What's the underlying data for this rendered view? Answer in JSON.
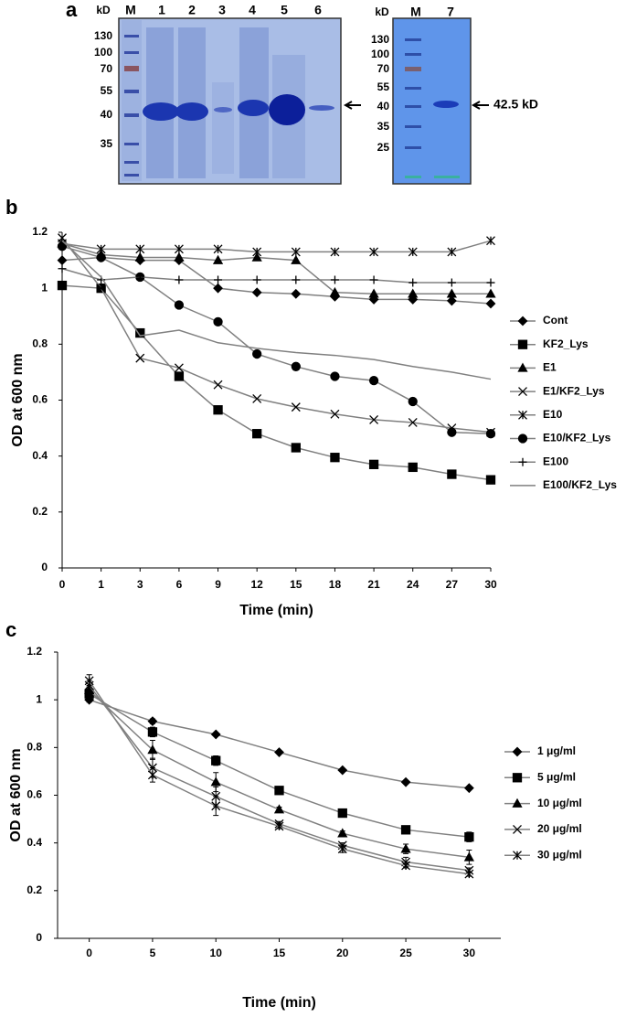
{
  "panel_a": {
    "label": "a",
    "gel_left": {
      "unit": "kD",
      "lanes": [
        "M",
        "1",
        "2",
        "3",
        "4",
        "5",
        "6"
      ],
      "markers": [
        "130",
        "100",
        "70",
        "55",
        "40",
        "35"
      ]
    },
    "gel_right": {
      "unit": "kD",
      "lanes": [
        "M",
        "7"
      ],
      "markers": [
        "130",
        "100",
        "70",
        "55",
        "40",
        "35",
        "25"
      ],
      "band_label": "42.5 kD"
    }
  },
  "chart_data": [
    {
      "type": "line",
      "panel_label": "b",
      "x_label": "Time (min)",
      "y_label": "OD at 600 nm",
      "categories": [
        "0",
        "1",
        "3",
        "6",
        "9",
        "12",
        "15",
        "18",
        "21",
        "24",
        "27",
        "30"
      ],
      "ylim": [
        0,
        1.2
      ],
      "yticks": [
        0,
        0.2,
        0.4,
        0.6,
        0.8,
        1,
        1.2
      ],
      "marker_color": "#000000",
      "legend": "right",
      "series": [
        {
          "name": "Cont",
          "color": "#808080",
          "marker": "diamond",
          "values": [
            1.1,
            1.11,
            1.1,
            1.1,
            1.0,
            0.985,
            0.98,
            0.97,
            0.96,
            0.96,
            0.955,
            0.945
          ]
        },
        {
          "name": "KF2_Lys",
          "color": "#808080",
          "marker": "square",
          "values": [
            1.01,
            1.0,
            0.84,
            0.685,
            0.565,
            0.48,
            0.43,
            0.395,
            0.37,
            0.36,
            0.335,
            0.315
          ]
        },
        {
          "name": "E1",
          "color": "#808080",
          "marker": "triangle",
          "values": [
            1.16,
            1.12,
            1.11,
            1.11,
            1.1,
            1.11,
            1.1,
            0.985,
            0.98,
            0.98,
            0.98,
            0.98
          ]
        },
        {
          "name": "E1/KF2_Lys",
          "color": "#808080",
          "marker": "x",
          "values": [
            1.18,
            1.0,
            0.75,
            0.715,
            0.655,
            0.605,
            0.575,
            0.55,
            0.53,
            0.52,
            0.5,
            0.485
          ]
        },
        {
          "name": "E10",
          "color": "#808080",
          "marker": "asterisk",
          "values": [
            1.16,
            1.14,
            1.14,
            1.14,
            1.14,
            1.13,
            1.13,
            1.13,
            1.13,
            1.13,
            1.13,
            1.17
          ]
        },
        {
          "name": "E10/KF2_Lys",
          "color": "#808080",
          "marker": "circle",
          "values": [
            1.15,
            1.11,
            1.04,
            0.94,
            0.88,
            0.765,
            0.72,
            0.685,
            0.67,
            0.595,
            0.485,
            0.48
          ]
        },
        {
          "name": "E100",
          "color": "#808080",
          "marker": "plus",
          "values": [
            1.07,
            1.03,
            1.04,
            1.03,
            1.03,
            1.03,
            1.03,
            1.03,
            1.03,
            1.02,
            1.02,
            1.02
          ]
        },
        {
          "name": "E100/KF2_Lys",
          "color": "#808080",
          "marker": "none",
          "values": [
            1.17,
            1.04,
            0.83,
            0.85,
            0.805,
            0.785,
            0.77,
            0.76,
            0.745,
            0.72,
            0.7,
            0.675
          ]
        }
      ]
    },
    {
      "type": "line",
      "panel_label": "c",
      "x_label": "Time (min)",
      "y_label": "OD at 600 nm",
      "categories": [
        "0",
        "5",
        "10",
        "15",
        "20",
        "25",
        "30"
      ],
      "ylim": [
        0,
        1.2
      ],
      "yticks": [
        0,
        0.2,
        0.4,
        0.6,
        0.8,
        1,
        1.2
      ],
      "marker_color": "#000000",
      "legend": "right",
      "series": [
        {
          "name": "1 μg/ml",
          "color": "#808080",
          "marker": "diamond",
          "values": [
            1.0,
            0.91,
            0.855,
            0.78,
            0.705,
            0.655,
            0.63
          ],
          "errors": [
            0.01,
            0.01,
            0.005,
            0.005,
            0.005,
            0.005,
            0.005
          ]
        },
        {
          "name": "5 μg/ml",
          "color": "#808080",
          "marker": "square",
          "values": [
            1.025,
            0.865,
            0.745,
            0.62,
            0.525,
            0.455,
            0.425
          ],
          "errors": [
            0.02,
            0.02,
            0.02,
            0.01,
            0.01,
            0.015,
            0.02
          ]
        },
        {
          "name": "10 μg/ml",
          "color": "#808080",
          "marker": "triangle",
          "values": [
            1.04,
            0.79,
            0.655,
            0.54,
            0.44,
            0.375,
            0.34
          ],
          "errors": [
            0.02,
            0.04,
            0.04,
            0.01,
            0.01,
            0.02,
            0.03
          ]
        },
        {
          "name": "20 μg/ml",
          "color": "#808080",
          "marker": "x",
          "values": [
            1.06,
            0.715,
            0.595,
            0.48,
            0.39,
            0.32,
            0.285
          ],
          "errors": [
            0.02,
            0.04,
            0.04,
            0.01,
            0.01,
            0.02,
            0.01
          ]
        },
        {
          "name": "30 μg/ml",
          "color": "#808080",
          "marker": "asterisk",
          "values": [
            1.08,
            0.685,
            0.555,
            0.47,
            0.375,
            0.305,
            0.27
          ],
          "errors": [
            0.025,
            0.03,
            0.04,
            0.01,
            0.015,
            0.01,
            0.01
          ]
        }
      ]
    }
  ]
}
